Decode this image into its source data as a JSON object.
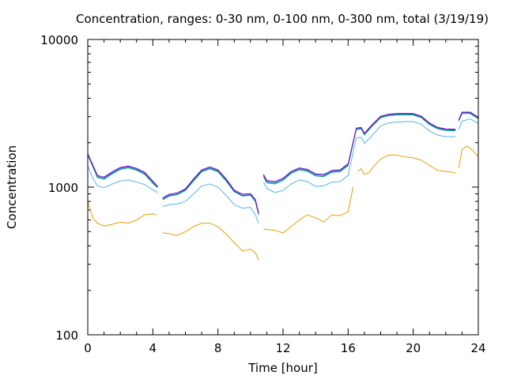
{
  "chart_data": {
    "type": "line",
    "title": "Concentration, ranges: 0-30 nm, 0-100 nm, 0-300 nm, total (3/19/19)",
    "xlabel": "Time [hour]",
    "ylabel": "Concentration",
    "y_scale": "log",
    "xlim": [
      0,
      24
    ],
    "ylim": [
      100,
      10000
    ],
    "x_ticks": [
      0,
      4,
      8,
      12,
      16,
      20,
      24
    ],
    "y_ticks": [
      100,
      1000,
      10000
    ],
    "grid": false,
    "legend": "none",
    "series": [
      {
        "color": "#e69f00",
        "segments": [
          {
            "x": [
              0,
              0.3,
              0.6,
              1.0,
              1.5,
              2.0,
              2.5,
              3.0,
              3.5,
              4.0,
              4.2
            ],
            "y": [
              800,
              620,
              570,
              545,
              560,
              580,
              570,
              600,
              650,
              660,
              650
            ]
          },
          {
            "x": [
              4.6,
              5.0,
              5.5,
              6.0,
              6.5,
              7.0,
              7.5,
              8.0,
              8.5,
              9.0,
              9.5,
              10.0,
              10.3,
              10.5
            ],
            "y": [
              490,
              485,
              470,
              500,
              540,
              570,
              570,
              540,
              480,
              420,
              370,
              380,
              360,
              320
            ]
          },
          {
            "x": [
              10.8,
              11.5,
              12.0,
              12.5,
              13.0,
              13.5,
              14.0,
              14.5,
              15.0,
              15.5,
              16.0,
              16.3
            ],
            "y": [
              520,
              510,
              490,
              540,
              600,
              650,
              620,
              580,
              650,
              640,
              680,
              1000
            ]
          },
          {
            "x": [
              16.6,
              16.8,
              17.0,
              17.3,
              17.6,
              18.0,
              18.5,
              19.0,
              19.5,
              20.0,
              20.5,
              21.0,
              21.5,
              22.0,
              22.6
            ],
            "y": [
              1280,
              1330,
              1220,
              1260,
              1400,
              1550,
              1650,
              1650,
              1600,
              1580,
              1520,
              1400,
              1300,
              1280,
              1250
            ]
          },
          {
            "x": [
              22.8,
              23.0,
              23.3,
              23.6,
              24.0
            ],
            "y": [
              1350,
              1800,
              1900,
              1800,
              1600
            ]
          }
        ]
      },
      {
        "color": "#56b4e9",
        "segments": [
          {
            "x": [
              0,
              0.3,
              0.6,
              1.0,
              1.5,
              2.0,
              2.5,
              3.0,
              3.5,
              4.0,
              4.3
            ],
            "y": [
              1400,
              1150,
              1020,
              990,
              1050,
              1100,
              1120,
              1080,
              1040,
              960,
              920
            ]
          },
          {
            "x": [
              4.6,
              5.0,
              5.5,
              6.0,
              6.5,
              7.0,
              7.5,
              8.0,
              8.5,
              9.0,
              9.5,
              10.0,
              10.3,
              10.5
            ],
            "y": [
              740,
              760,
              770,
              800,
              900,
              1020,
              1050,
              1000,
              880,
              760,
              720,
              730,
              650,
              570
            ]
          },
          {
            "x": [
              10.8,
              11.0,
              11.5,
              12.0,
              12.5,
              13.0,
              13.5,
              14.0,
              14.5,
              15.0,
              15.5,
              16.0,
              16.5
            ],
            "y": [
              1080,
              980,
              920,
              950,
              1050,
              1120,
              1090,
              1010,
              1020,
              1080,
              1090,
              1200,
              2150
            ]
          },
          {
            "x": [
              16.5,
              16.8,
              17.0,
              17.5,
              18.0,
              18.5,
              19.0,
              19.5,
              20.0,
              20.5,
              21.0,
              21.5,
              22.0,
              22.6
            ],
            "y": [
              2150,
              2180,
              1980,
              2250,
              2600,
              2720,
              2760,
              2780,
              2780,
              2660,
              2400,
              2250,
              2200,
              2200
            ]
          },
          {
            "x": [
              22.8,
              23.0,
              23.5,
              24.0
            ],
            "y": [
              2450,
              2800,
              2900,
              2700
            ]
          }
        ]
      },
      {
        "color": "#009e73",
        "segments": [
          {
            "x": [
              0,
              0.3,
              0.6,
              1.0,
              1.5,
              2.0,
              2.5,
              3.0,
              3.5,
              4.0,
              4.3
            ],
            "y": [
              1650,
              1380,
              1160,
              1130,
              1230,
              1320,
              1350,
              1300,
              1220,
              1060,
              990
            ]
          },
          {
            "x": [
              4.6,
              5.0,
              5.5,
              6.0,
              6.5,
              7.0,
              7.5,
              8.0,
              8.5,
              9.0,
              9.5,
              10.0,
              10.3,
              10.5
            ],
            "y": [
              820,
              870,
              890,
              950,
              1100,
              1270,
              1330,
              1270,
              1100,
              930,
              870,
              880,
              800,
              650
            ]
          },
          {
            "x": [
              10.8,
              11.0,
              11.5,
              12.0,
              12.5,
              13.0,
              13.5,
              14.0,
              14.5,
              15.0,
              15.5,
              16.0,
              16.5
            ],
            "y": [
              1180,
              1070,
              1050,
              1110,
              1240,
              1310,
              1280,
              1190,
              1180,
              1260,
              1270,
              1400,
              2450
            ]
          },
          {
            "x": [
              16.5,
              16.8,
              17.0,
              17.5,
              18.0,
              18.5,
              19.0,
              19.5,
              20.0,
              20.5,
              21.0,
              21.5,
              22.0,
              22.6
            ],
            "y": [
              2450,
              2480,
              2260,
              2600,
              2950,
              3050,
              3080,
              3090,
              3080,
              2950,
              2650,
              2480,
              2420,
              2410
            ]
          },
          {
            "x": [
              22.8,
              23.0,
              23.5,
              24.0
            ],
            "y": [
              2800,
              3150,
              3150,
              2900
            ]
          }
        ]
      },
      {
        "color": "#0072b2",
        "segments": [
          {
            "x": [
              0,
              0.3,
              0.6,
              1.0,
              1.5,
              2.0,
              2.5,
              3.0,
              3.5,
              4.0,
              4.3
            ],
            "y": [
              1670,
              1400,
              1180,
              1150,
              1250,
              1340,
              1370,
              1320,
              1240,
              1080,
              1000
            ]
          },
          {
            "x": [
              4.6,
              5.0,
              5.5,
              6.0,
              6.5,
              7.0,
              7.5,
              8.0,
              8.5,
              9.0,
              9.5,
              10.0,
              10.3,
              10.5
            ],
            "y": [
              830,
              880,
              900,
              960,
              1120,
              1290,
              1350,
              1290,
              1120,
              940,
              880,
              890,
              810,
              660
            ]
          },
          {
            "x": [
              10.8,
              11.0,
              11.5,
              12.0,
              12.5,
              13.0,
              13.5,
              14.0,
              14.5,
              15.0,
              15.5,
              16.0,
              16.5
            ],
            "y": [
              1200,
              1090,
              1070,
              1130,
              1260,
              1330,
              1300,
              1210,
              1200,
              1280,
              1290,
              1420,
              2480
            ]
          },
          {
            "x": [
              16.5,
              16.8,
              17.0,
              17.5,
              18.0,
              18.5,
              19.0,
              19.5,
              20.0,
              20.5,
              21.0,
              21.5,
              22.0,
              22.6
            ],
            "y": [
              2480,
              2510,
              2290,
              2640,
              2990,
              3090,
              3120,
              3130,
              3120,
              2990,
              2690,
              2510,
              2450,
              2440
            ]
          },
          {
            "x": [
              22.8,
              23.0,
              23.5,
              24.0
            ],
            "y": [
              2840,
              3190,
              3190,
              2940
            ]
          }
        ]
      },
      {
        "color": "#9400d3",
        "segments": [
          {
            "x": [
              0,
              0.3,
              0.6,
              1.0,
              1.5,
              2.0,
              2.5,
              3.0,
              3.5,
              4.0,
              4.3
            ],
            "y": [
              1690,
              1420,
              1200,
              1170,
              1270,
              1360,
              1390,
              1340,
              1260,
              1100,
              1010
            ]
          },
          {
            "x": [
              4.6,
              5.0,
              5.5,
              6.0,
              6.5,
              7.0,
              7.5,
              8.0,
              8.5,
              9.0,
              9.5,
              10.0,
              10.3,
              10.5
            ],
            "y": [
              845,
              895,
              915,
              975,
              1140,
              1310,
              1370,
              1310,
              1140,
              955,
              895,
              905,
              825,
              670
            ]
          },
          {
            "x": [
              10.8,
              11.0,
              11.5,
              12.0,
              12.5,
              13.0,
              13.5,
              14.0,
              14.5,
              15.0,
              15.5,
              16.0,
              16.5
            ],
            "y": [
              1220,
              1110,
              1090,
              1150,
              1280,
              1350,
              1320,
              1230,
              1220,
              1300,
              1310,
              1440,
              2510
            ]
          },
          {
            "x": [
              16.5,
              16.8,
              17.0,
              17.5,
              18.0,
              18.5,
              19.0,
              19.5,
              20.0,
              20.5,
              21.0,
              21.5,
              22.0,
              22.6
            ],
            "y": [
              2510,
              2540,
              2320,
              2670,
              3020,
              3120,
              3150,
              3160,
              3150,
              3020,
              2720,
              2540,
              2480,
              2470
            ]
          },
          {
            "x": [
              22.8,
              23.0,
              23.5,
              24.0
            ],
            "y": [
              2870,
              3220,
              3220,
              2970
            ]
          }
        ]
      }
    ]
  }
}
